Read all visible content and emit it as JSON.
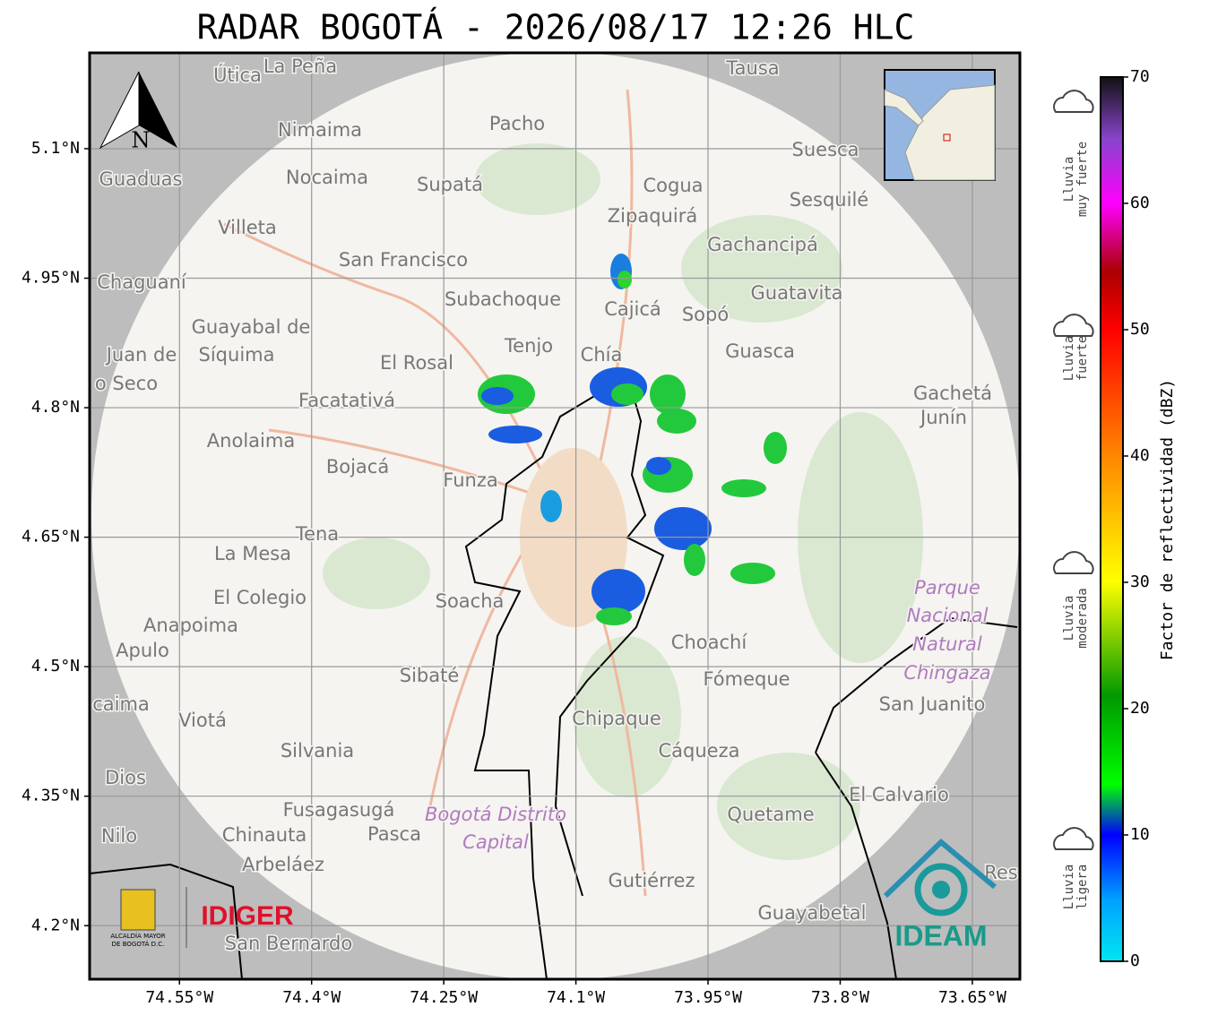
{
  "title": "RADAR BOGOTÁ - 2026/08/17 12:26 HLC",
  "map": {
    "xlim": [
      -74.652,
      -73.596
    ],
    "ylim": [
      4.138,
      5.211
    ],
    "xticks": [
      {
        "value": -74.55,
        "label": "74.55°W"
      },
      {
        "value": -74.4,
        "label": "74.4°W"
      },
      {
        "value": -74.25,
        "label": "74.25°W"
      },
      {
        "value": -74.1,
        "label": "74.1°W"
      },
      {
        "value": -73.95,
        "label": "73.95°W"
      },
      {
        "value": -73.8,
        "label": "73.8°W"
      },
      {
        "value": -73.65,
        "label": "73.65°W"
      }
    ],
    "yticks": [
      {
        "value": 5.1,
        "label": "5.1°N"
      },
      {
        "value": 4.95,
        "label": "4.95°N"
      },
      {
        "value": 4.8,
        "label": "4.8°N"
      },
      {
        "value": 4.65,
        "label": "4.65°N"
      },
      {
        "value": 4.5,
        "label": "4.5°N"
      },
      {
        "value": 4.35,
        "label": "4.35°N"
      },
      {
        "value": 4.2,
        "label": "4.2°N"
      }
    ],
    "grid": true,
    "north": "N",
    "places": [
      "Útica",
      "La Peña",
      "Tausa",
      "Pacho",
      "Nimaima",
      "Guaduas",
      "Nocaima",
      "Supatá",
      "Cogua",
      "Suesca",
      "Sesquilé",
      "Zipaquirá",
      "Villeta",
      "Gachancipá",
      "San Francisco",
      "Chaguaní",
      "Guatavita",
      "Subachoque",
      "Cajicá",
      "Sopó",
      "Guayabal de",
      "Síquima",
      "Juan de",
      "o Seco",
      "Tenjo",
      "El Rosal",
      "Chía",
      "Guasca",
      "Facatativá",
      "Gachetá",
      "Junín",
      "Anolaima",
      "Bojacá",
      "Funza",
      "Tena",
      "La Mesa",
      "El Colegio",
      "Soacha",
      "Parque",
      "Nacional",
      "Natural",
      "Chingaza",
      "Anapoima",
      "Apulo",
      "Choachí",
      "Sibaté",
      "Fómeque",
      "San Juanito",
      "caima",
      "Viotá",
      "Chipaque",
      "Silvania",
      "Cáqueza",
      "Dios",
      "El Calvario",
      "Fusagasugá",
      "Bogotá Distrito",
      "Capital",
      "Quetame",
      "Nilo",
      "Chinauta",
      "Pasca",
      "Arbeláez",
      "Gutiérrez",
      "Guayabetal",
      "San Bernardo",
      "Res"
    ]
  },
  "colorbar": {
    "label": "Factor de reflectividad (dBZ)",
    "lim": [
      0,
      70
    ],
    "ticks": [
      0,
      10,
      20,
      30,
      40,
      50,
      60,
      70
    ]
  },
  "rain_levels": [
    [
      "Lluvia",
      "muy fuerte"
    ],
    [
      "Lluvia",
      "fuerte"
    ],
    [
      "Lluvia",
      "moderada"
    ],
    [
      "Lluvia",
      "ligera"
    ]
  ],
  "logos": {
    "alcaldia": [
      "ALCALDÍA MAYOR",
      "DE BOGOTÁ D.C."
    ],
    "idiger": "IDIGER",
    "ideam": "IDEAM"
  }
}
